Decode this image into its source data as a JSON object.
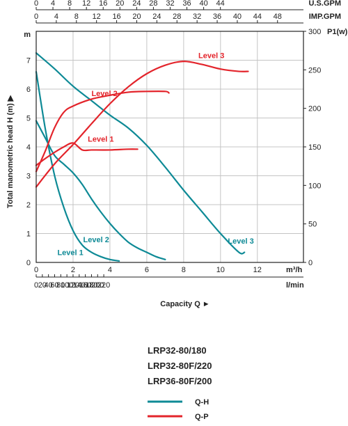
{
  "colors": {
    "qh": "#0e8a96",
    "qp": "#e3242b",
    "axis": "#222222",
    "grid": "#c4c4c4",
    "plot_bg": "#ffffff"
  },
  "axes": {
    "usgpm_ticks": [
      "0",
      "4",
      "8",
      "12",
      "16",
      "20",
      "24",
      "28",
      "32",
      "36",
      "40",
      "44"
    ],
    "usgpm_label": "U.S.GPM",
    "impgpm_ticks": [
      "0",
      "4",
      "8",
      "12",
      "16",
      "20",
      "24",
      "28",
      "32",
      "36",
      "40",
      "44",
      "48"
    ],
    "impgpm_label": "IMP.GPM",
    "m3h_ticks": [
      "0",
      "2",
      "4",
      "6",
      "8",
      "10",
      "12"
    ],
    "m3h_label": "m³/h",
    "lmin_ticks": [
      "0",
      "20",
      "40",
      "60",
      "80",
      "100",
      "120",
      "140",
      "160",
      "180",
      "200",
      "220"
    ],
    "lmin_label": "l/min",
    "head_ticks": [
      "0",
      "1",
      "2",
      "3",
      "4",
      "5",
      "6",
      "7"
    ],
    "head_unit": "m",
    "power_ticks": [
      "0",
      "50",
      "100",
      "150",
      "200",
      "250",
      "300"
    ],
    "power_unit": "P1(w)",
    "ylabel": "Total manometric head H (m) ▶",
    "xlabel": "Capacity Q ►"
  },
  "models": [
    "LRP32-80/180",
    "LRP32-80F/220",
    "LRP36-80F/200"
  ],
  "legend": [
    {
      "key": "qh",
      "label": "Q-H"
    },
    {
      "key": "qp",
      "label": "Q-P"
    }
  ],
  "chart_data": {
    "type": "line",
    "xlabel": "Capacity Q ►",
    "ylabel": "Total manometric head H (m) ▶",
    "y2label": "P1(w)",
    "xlim_m3h": [
      0,
      14.5
    ],
    "ylim_m": [
      0,
      8
    ],
    "y2lim_w": [
      0,
      300
    ],
    "grid": true,
    "series": [
      {
        "name": "Level 1",
        "kind": "Q-H",
        "x": [
          0.0,
          0.5,
          1.0,
          1.5,
          2.0,
          2.5,
          3.0,
          3.5,
          4.0,
          4.5
        ],
        "y": [
          6.6,
          4.6,
          3.0,
          1.9,
          1.1,
          0.6,
          0.35,
          0.2,
          0.1,
          0.05
        ]
      },
      {
        "name": "Level 2",
        "kind": "Q-H",
        "x": [
          0.0,
          0.5,
          1.0,
          1.5,
          2.0,
          2.5,
          3.0,
          3.5,
          4.0,
          4.5,
          5.0,
          5.5,
          6.0,
          6.5,
          7.0
        ],
        "y": [
          4.9,
          4.3,
          3.7,
          3.4,
          3.1,
          2.7,
          2.2,
          1.75,
          1.35,
          1.0,
          0.7,
          0.5,
          0.35,
          0.2,
          0.1
        ]
      },
      {
        "name": "Level 3",
        "kind": "Q-H",
        "x": [
          0.0,
          1.0,
          2.0,
          3.0,
          4.0,
          5.0,
          6.0,
          7.0,
          8.0,
          9.0,
          10.0,
          11.0,
          11.3
        ],
        "y": [
          7.25,
          6.7,
          6.1,
          5.6,
          5.1,
          4.65,
          4.05,
          3.3,
          2.5,
          1.75,
          1.0,
          0.35,
          0.35
        ]
      },
      {
        "name": "Level 1",
        "kind": "Q-P",
        "x": [
          0.0,
          0.5,
          1.0,
          1.5,
          2.0,
          2.5,
          3.0,
          4.0,
          5.0,
          5.5
        ],
        "y": [
          126,
          135,
          143,
          150,
          155,
          146,
          146,
          146,
          147,
          147
        ]
      },
      {
        "name": "Level 2",
        "kind": "Q-P",
        "x": [
          0.0,
          0.5,
          1.0,
          1.5,
          2.0,
          3.0,
          4.0,
          5.0,
          6.0,
          7.0,
          7.2
        ],
        "y": [
          118,
          145,
          175,
          195,
          203,
          212,
          217,
          221,
          222,
          222,
          220
        ]
      },
      {
        "name": "Level 3",
        "kind": "Q-P",
        "x": [
          0.0,
          1.0,
          2.0,
          3.0,
          4.0,
          5.0,
          6.0,
          7.0,
          8.0,
          9.0,
          10.0,
          11.0,
          11.5
        ],
        "y": [
          98,
          128,
          153,
          180,
          206,
          228,
          245,
          256,
          261,
          257,
          251,
          248,
          248
        ]
      }
    ]
  }
}
